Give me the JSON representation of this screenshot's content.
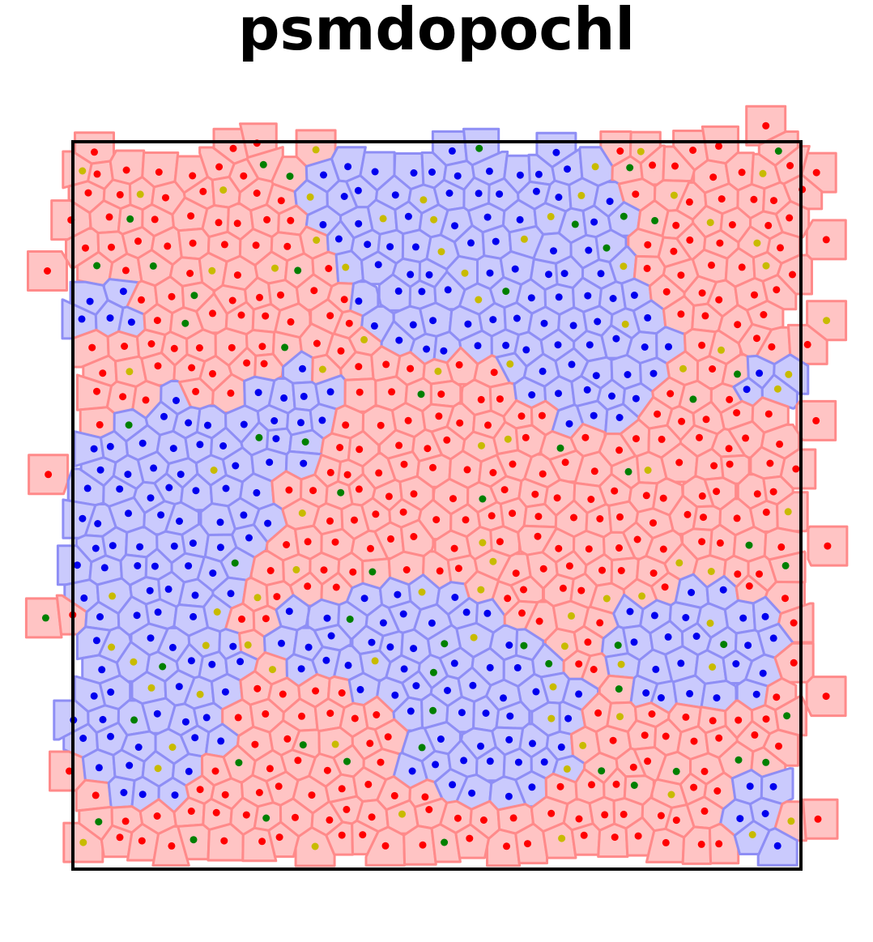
{
  "title": "psmdopochl",
  "colors": {
    "region_a_fill": "#ffc4c4",
    "region_a_edge": "#ff8a8a",
    "region_b_fill": "#cacafd",
    "region_b_edge": "#8e8ef5",
    "dot_red": "#ff0000",
    "dot_blue": "#0000ee",
    "dot_yellow": "#c8bb00",
    "dot_green": "#008000",
    "frame": "#000000"
  }
}
